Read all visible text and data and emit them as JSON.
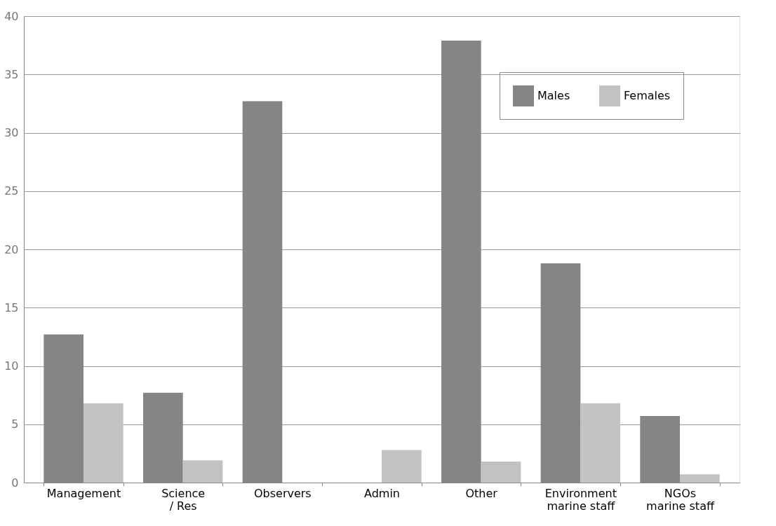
{
  "chart_data": {
    "type": "bar",
    "categories": [
      "Management",
      "Science\n/ Res",
      "Observers",
      "Admin",
      "Other",
      "Environment\nmarine staff",
      "NGOs\nmarine staff"
    ],
    "series": [
      {
        "name": "Males",
        "color": "#858585",
        "values": [
          12.7,
          7.7,
          32.7,
          0,
          37.9,
          18.8,
          5.7
        ]
      },
      {
        "name": "Females",
        "color": "#c2c2c2",
        "values": [
          6.8,
          1.9,
          0,
          2.8,
          1.8,
          6.8,
          0.7
        ]
      }
    ],
    "ylim": [
      0,
      40
    ],
    "yticks": [
      0,
      5,
      10,
      15,
      20,
      25,
      30,
      35,
      40
    ],
    "grid": "y",
    "legend": "top right"
  }
}
